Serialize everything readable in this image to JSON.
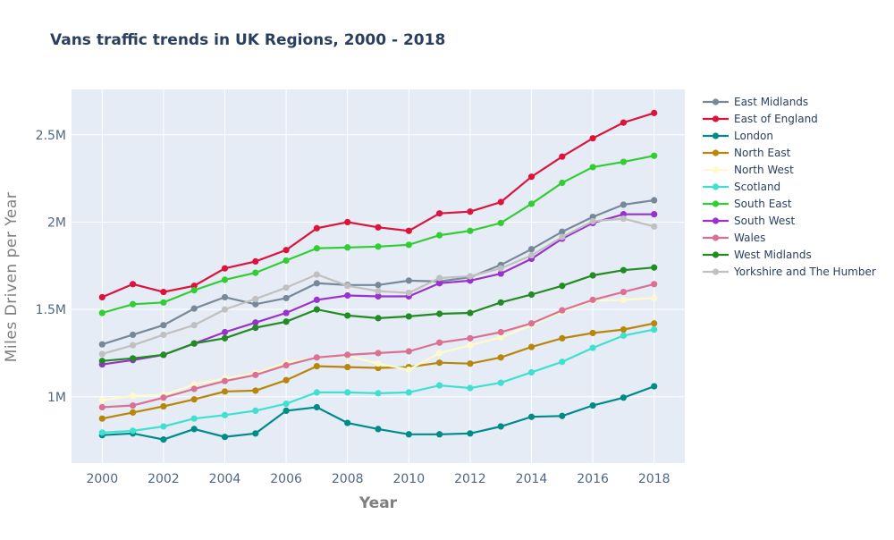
{
  "chart_data": {
    "type": "line",
    "title": "Vans traffic trends in UK Regions, 2000 - 2018",
    "xlabel": "Year",
    "ylabel": "Miles Driven per Year",
    "xlim": [
      1988.0,
      2019.0
    ],
    "x_range": [
      1999.0,
      2019.0
    ],
    "ylim": [
      620000,
      2760000
    ],
    "x_ticks": [
      2000,
      2002,
      2004,
      2006,
      2008,
      2010,
      2012,
      2014,
      2016,
      2018
    ],
    "y_ticks": [
      1000000,
      1500000,
      2000000,
      2500000
    ],
    "y_tick_labels": [
      "1M",
      "1.5M",
      "2M",
      "2.5M"
    ],
    "grid": true,
    "legend_position": "right",
    "x": [
      2000,
      2001,
      2002,
      2003,
      2004,
      2005,
      2006,
      2007,
      2008,
      2009,
      2010,
      2011,
      2012,
      2013,
      2014,
      2015,
      2016,
      2017,
      2018
    ],
    "series": [
      {
        "name": "East Midlands",
        "color": "#778899",
        "values": [
          1300000,
          1355000,
          1410000,
          1505000,
          1570000,
          1530000,
          1565000,
          1650000,
          1640000,
          1640000,
          1665000,
          1660000,
          1685000,
          1755000,
          1845000,
          1945000,
          2030000,
          2100000,
          2125000
        ]
      },
      {
        "name": "East of England",
        "color": "#dc143c",
        "values": [
          1570000,
          1645000,
          1600000,
          1635000,
          1735000,
          1775000,
          1840000,
          1965000,
          2000000,
          1970000,
          1950000,
          2050000,
          2060000,
          2115000,
          2260000,
          2375000,
          2480000,
          2570000,
          2625000
        ]
      },
      {
        "name": "London",
        "color": "#008b8b",
        "values": [
          780000,
          790000,
          755000,
          815000,
          770000,
          790000,
          920000,
          940000,
          850000,
          815000,
          785000,
          785000,
          790000,
          830000,
          885000,
          890000,
          950000,
          995000,
          1060000
        ]
      },
      {
        "name": "North East",
        "color": "#b8860b",
        "values": [
          875000,
          910000,
          945000,
          985000,
          1030000,
          1035000,
          1095000,
          1175000,
          1170000,
          1165000,
          1170000,
          1195000,
          1190000,
          1225000,
          1285000,
          1335000,
          1365000,
          1385000,
          1420000
        ]
      },
      {
        "name": "North West",
        "color": "#fffacd",
        "values": [
          980000,
          1005000,
          1010000,
          1070000,
          1105000,
          1135000,
          1195000,
          1225000,
          1235000,
          1190000,
          1155000,
          1250000,
          1295000,
          1340000,
          1410000,
          1485000,
          1550000,
          1555000,
          1565000
        ]
      },
      {
        "name": "Scotland",
        "color": "#40e0d0",
        "values": [
          795000,
          805000,
          830000,
          875000,
          895000,
          920000,
          960000,
          1025000,
          1025000,
          1020000,
          1025000,
          1065000,
          1050000,
          1080000,
          1140000,
          1200000,
          1280000,
          1350000,
          1385000
        ]
      },
      {
        "name": "South East",
        "color": "#32cd32",
        "values": [
          1480000,
          1530000,
          1540000,
          1610000,
          1670000,
          1710000,
          1780000,
          1850000,
          1855000,
          1860000,
          1870000,
          1925000,
          1950000,
          1995000,
          2105000,
          2225000,
          2315000,
          2345000,
          2380000
        ]
      },
      {
        "name": "South West",
        "color": "#9932cc",
        "values": [
          1185000,
          1210000,
          1240000,
          1305000,
          1370000,
          1425000,
          1480000,
          1555000,
          1580000,
          1575000,
          1575000,
          1650000,
          1665000,
          1705000,
          1790000,
          1905000,
          1995000,
          2045000,
          2045000
        ]
      },
      {
        "name": "Wales",
        "color": "#db7093",
        "values": [
          940000,
          950000,
          995000,
          1045000,
          1090000,
          1125000,
          1180000,
          1225000,
          1240000,
          1250000,
          1260000,
          1310000,
          1335000,
          1370000,
          1420000,
          1495000,
          1555000,
          1600000,
          1645000
        ]
      },
      {
        "name": "West Midlands",
        "color": "#228b22",
        "values": [
          1205000,
          1220000,
          1240000,
          1305000,
          1335000,
          1395000,
          1430000,
          1500000,
          1465000,
          1450000,
          1460000,
          1475000,
          1480000,
          1540000,
          1585000,
          1635000,
          1695000,
          1725000,
          1740000
        ]
      },
      {
        "name": "Yorkshire and The Humber",
        "color": "#c0c0c0",
        "values": [
          1245000,
          1295000,
          1355000,
          1410000,
          1500000,
          1560000,
          1625000,
          1700000,
          1635000,
          1605000,
          1595000,
          1680000,
          1690000,
          1735000,
          1810000,
          1915000,
          2005000,
          2020000,
          1975000
        ]
      }
    ]
  }
}
